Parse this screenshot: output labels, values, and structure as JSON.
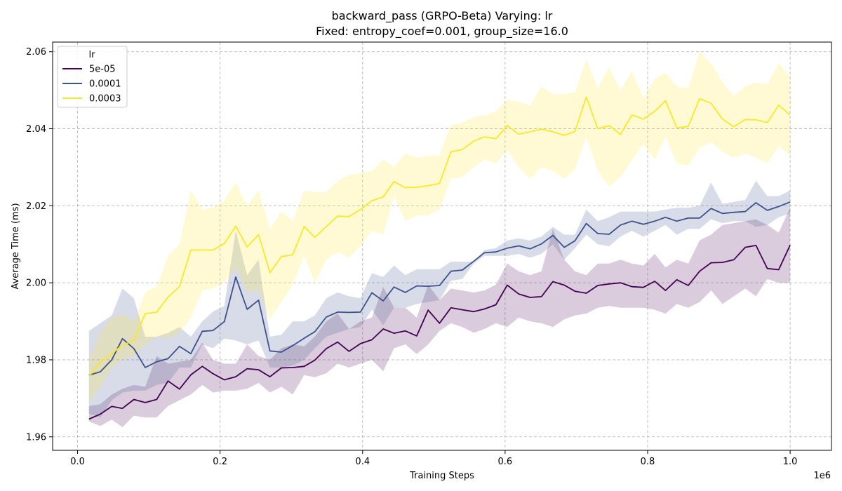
{
  "chart_data": {
    "type": "line",
    "title": "backward_pass (GRPO-Beta) Varying: lr",
    "subtitle": "Fixed: entropy_coef=0.001, group_size=16.0",
    "xlabel": "Training Steps",
    "ylabel": "Average Time (ms)",
    "x_multiplier_label": "1e6",
    "xlim": [
      -0.035,
      1.058
    ],
    "ylim": [
      1.9565,
      2.0625
    ],
    "x_ticks": [
      "0.0",
      "0.2",
      "0.4",
      "0.6",
      "0.8",
      "1.0"
    ],
    "x_tick_values": [
      0.0,
      0.2,
      0.4,
      0.6,
      0.8,
      1.0
    ],
    "y_ticks": [
      "1.96",
      "1.98",
      "2.00",
      "2.02",
      "2.04",
      "2.06"
    ],
    "y_tick_values": [
      1.96,
      1.98,
      2.0,
      2.02,
      2.04,
      2.06
    ],
    "grid": true,
    "legend_title": "lr",
    "legend_position": "top-left",
    "x": [
      0.016,
      0.032,
      0.048,
      0.063,
      0.079,
      0.095,
      0.111,
      0.127,
      0.143,
      0.159,
      0.175,
      0.19,
      0.206,
      0.222,
      0.238,
      0.254,
      0.27,
      0.286,
      0.302,
      0.318,
      0.333,
      0.349,
      0.365,
      0.381,
      0.397,
      0.413,
      0.429,
      0.444,
      0.46,
      0.476,
      0.492,
      0.508,
      0.524,
      0.54,
      0.556,
      0.571,
      0.587,
      0.603,
      0.619,
      0.635,
      0.651,
      0.667,
      0.683,
      0.698,
      0.714,
      0.73,
      0.746,
      0.762,
      0.778,
      0.794,
      0.81,
      0.825,
      0.841,
      0.857,
      0.873,
      0.889,
      0.905,
      0.921,
      0.937,
      0.952,
      0.968,
      0.984,
      1.0
    ],
    "series": [
      {
        "name": "5e-05",
        "color": "#440154",
        "values": [
          1.9646,
          1.9659,
          1.9679,
          1.9674,
          1.9697,
          1.9689,
          1.9697,
          1.9745,
          1.9724,
          1.9761,
          1.9783,
          1.9764,
          1.9748,
          1.9756,
          1.9777,
          1.9774,
          1.9756,
          1.9779,
          1.978,
          1.9783,
          1.9799,
          1.9829,
          1.9846,
          1.9822,
          1.9842,
          1.9852,
          1.988,
          1.9869,
          1.9875,
          1.9862,
          1.9929,
          1.9895,
          1.9935,
          1.993,
          1.9925,
          1.9932,
          1.9943,
          1.9994,
          1.9971,
          1.9962,
          1.9964,
          2.0003,
          1.9994,
          1.9978,
          1.9973,
          1.9993,
          1.9997,
          2.0,
          1.999,
          1.9988,
          2.0004,
          1.998,
          2.0008,
          1.9993,
          2.003,
          2.0052,
          2.0053,
          2.006,
          2.0092,
          2.0097,
          2.0037,
          2.0034,
          2.0098
        ],
        "upper": [
          1.968,
          1.9685,
          1.971,
          1.9725,
          1.9735,
          1.973,
          1.981,
          1.979,
          1.9795,
          1.98,
          1.9845,
          1.98,
          1.979,
          1.979,
          1.984,
          1.981,
          1.98,
          1.983,
          1.984,
          1.9835,
          1.986,
          1.99,
          1.992,
          1.988,
          1.99,
          1.991,
          1.999,
          1.9935,
          1.9935,
          1.991,
          1.9995,
          1.9955,
          1.9985,
          1.998,
          1.9975,
          1.998,
          1.9995,
          2.005,
          2.003,
          2.002,
          2.003,
          2.014,
          2.006,
          2.003,
          2.002,
          2.005,
          2.005,
          2.006,
          2.005,
          2.0045,
          2.0075,
          2.004,
          2.006,
          2.005,
          2.011,
          2.0125,
          2.015,
          2.0155,
          2.016,
          2.0165,
          2.015,
          2.013,
          2.0195
        ],
        "lower": [
          1.964,
          1.9628,
          1.9645,
          1.9625,
          1.9655,
          1.965,
          1.965,
          1.968,
          1.9695,
          1.971,
          1.9735,
          1.9715,
          1.972,
          1.972,
          1.9725,
          1.974,
          1.9715,
          1.973,
          1.971,
          1.976,
          1.9755,
          1.9765,
          1.979,
          1.978,
          1.979,
          1.98,
          1.977,
          1.983,
          1.984,
          1.9815,
          1.984,
          1.9875,
          1.9895,
          1.9885,
          1.987,
          1.988,
          1.9895,
          1.9885,
          1.991,
          1.99,
          1.9895,
          1.9885,
          1.9905,
          1.9915,
          1.992,
          1.9935,
          1.994,
          1.9935,
          1.9935,
          1.9935,
          1.993,
          1.992,
          1.9945,
          1.9935,
          1.995,
          1.998,
          1.9945,
          1.9965,
          1.9985,
          1.9965,
          2.001,
          2.0,
          2.0
        ]
      },
      {
        "name": "0.0001",
        "color": "#3b528b",
        "values": [
          1.976,
          1.9769,
          1.98,
          1.9855,
          1.9829,
          1.978,
          1.9795,
          1.9803,
          1.9835,
          1.9816,
          1.9874,
          1.9876,
          1.9899,
          2.0015,
          1.9931,
          1.9955,
          1.9823,
          1.982,
          1.9837,
          1.9856,
          1.9873,
          1.9911,
          1.9924,
          1.9923,
          1.9924,
          1.9974,
          1.9953,
          1.9989,
          1.9975,
          1.9992,
          1.9991,
          1.9993,
          2.003,
          2.0033,
          2.0056,
          2.0078,
          2.008,
          2.009,
          2.0096,
          2.0088,
          2.0101,
          2.0123,
          2.0092,
          2.0109,
          2.0154,
          2.0128,
          2.0126,
          2.015,
          2.016,
          2.0152,
          2.016,
          2.017,
          2.016,
          2.0168,
          2.0168,
          2.0193,
          2.018,
          2.0183,
          2.0185,
          2.0208,
          2.0188,
          2.0198,
          2.021
        ],
        "upper": [
          1.9875,
          1.9895,
          1.9915,
          1.9985,
          1.996,
          1.986,
          1.986,
          1.987,
          1.9885,
          1.986,
          1.99,
          1.9925,
          1.994,
          2.0135,
          2.002,
          2.006,
          1.986,
          1.9865,
          1.99,
          1.99,
          1.9915,
          1.996,
          1.9975,
          1.9965,
          1.996,
          2.0025,
          2.0015,
          2.0045,
          2.002,
          2.0035,
          2.0035,
          2.0035,
          2.0055,
          2.0055,
          2.0055,
          2.0085,
          2.009,
          2.011,
          2.0115,
          2.011,
          2.012,
          2.0145,
          2.0125,
          2.0125,
          2.019,
          2.016,
          2.017,
          2.0185,
          2.0185,
          2.0185,
          2.0185,
          2.019,
          2.0195,
          2.0195,
          2.02,
          2.026,
          2.0205,
          2.021,
          2.0215,
          2.0265,
          2.0225,
          2.0225,
          2.024
        ],
        "lower": [
          1.966,
          1.965,
          1.9695,
          1.9715,
          1.972,
          1.972,
          1.9735,
          1.974,
          1.978,
          1.978,
          1.984,
          1.983,
          1.9855,
          1.985,
          1.984,
          1.985,
          1.978,
          1.978,
          1.9785,
          1.98,
          1.983,
          1.986,
          1.987,
          1.988,
          1.9885,
          1.993,
          1.989,
          1.9935,
          1.9935,
          1.9945,
          1.995,
          1.9955,
          2.0005,
          2.001,
          2.005,
          2.007,
          2.007,
          2.007,
          2.0075,
          2.0065,
          2.0075,
          2.01,
          2.006,
          2.009,
          2.0125,
          2.01,
          2.0095,
          2.012,
          2.0135,
          2.012,
          2.0135,
          2.015,
          2.0125,
          2.014,
          2.014,
          2.0165,
          2.0155,
          2.016,
          2.016,
          2.0145,
          2.015,
          2.017,
          2.018
        ]
      },
      {
        "name": "0.0003",
        "color": "#fde725",
        "values": [
          1.9757,
          1.9793,
          1.9816,
          1.9838,
          1.985,
          1.992,
          1.9924,
          1.9963,
          1.999,
          2.0085,
          2.0085,
          2.0085,
          2.0102,
          2.0147,
          2.0093,
          2.0125,
          2.0026,
          2.0068,
          2.0073,
          2.0146,
          2.0118,
          2.0146,
          2.0173,
          2.0172,
          2.019,
          2.0213,
          2.0223,
          2.0263,
          2.0247,
          2.0248,
          2.0252,
          2.0258,
          2.034,
          2.0346,
          2.0368,
          2.0379,
          2.0374,
          2.0408,
          2.0386,
          2.0392,
          2.0399,
          2.0392,
          2.0383,
          2.0393,
          2.0482,
          2.04,
          2.0408,
          2.0385,
          2.0436,
          2.0425,
          2.0445,
          2.0473,
          2.0402,
          2.0406,
          2.0478,
          2.0466,
          2.0425,
          2.0405,
          2.0424,
          2.0423,
          2.0416,
          2.0461,
          2.0436
        ],
        "upper": [
          1.98,
          1.987,
          1.991,
          1.992,
          1.99,
          1.9975,
          1.999,
          2.007,
          2.01,
          2.024,
          2.019,
          2.0195,
          2.0215,
          2.026,
          2.02,
          2.024,
          2.014,
          2.0185,
          2.016,
          2.024,
          2.0235,
          2.0235,
          2.0265,
          2.028,
          2.0285,
          2.029,
          2.032,
          2.03,
          2.0335,
          2.0325,
          2.033,
          2.033,
          2.041,
          2.0415,
          2.043,
          2.0435,
          2.0445,
          2.0475,
          2.047,
          2.046,
          2.051,
          2.049,
          2.049,
          2.0495,
          2.058,
          2.0505,
          2.056,
          2.05,
          2.055,
          2.048,
          2.053,
          2.0545,
          2.051,
          2.0505,
          2.06,
          2.057,
          2.052,
          2.0485,
          2.051,
          2.052,
          2.0515,
          2.057,
          2.0535
        ],
        "lower": [
          1.969,
          1.973,
          1.978,
          1.98,
          1.981,
          1.984,
          1.986,
          1.9855,
          1.987,
          1.991,
          1.998,
          1.9985,
          2.0,
          2.004,
          1.9975,
          1.998,
          1.9905,
          1.995,
          1.9995,
          2.007,
          2.0,
          2.006,
          2.008,
          2.0065,
          2.0095,
          2.0135,
          2.0125,
          2.0225,
          2.016,
          2.0175,
          2.0175,
          2.019,
          2.027,
          2.0275,
          2.03,
          2.032,
          2.031,
          2.0345,
          2.03,
          2.027,
          2.03,
          2.029,
          2.027,
          2.0295,
          2.038,
          2.029,
          2.025,
          2.0275,
          2.032,
          2.036,
          2.032,
          2.038,
          2.031,
          2.0305,
          2.035,
          2.0365,
          2.034,
          2.0325,
          2.0335,
          2.0325,
          2.031,
          2.0355,
          2.033
        ]
      }
    ]
  }
}
